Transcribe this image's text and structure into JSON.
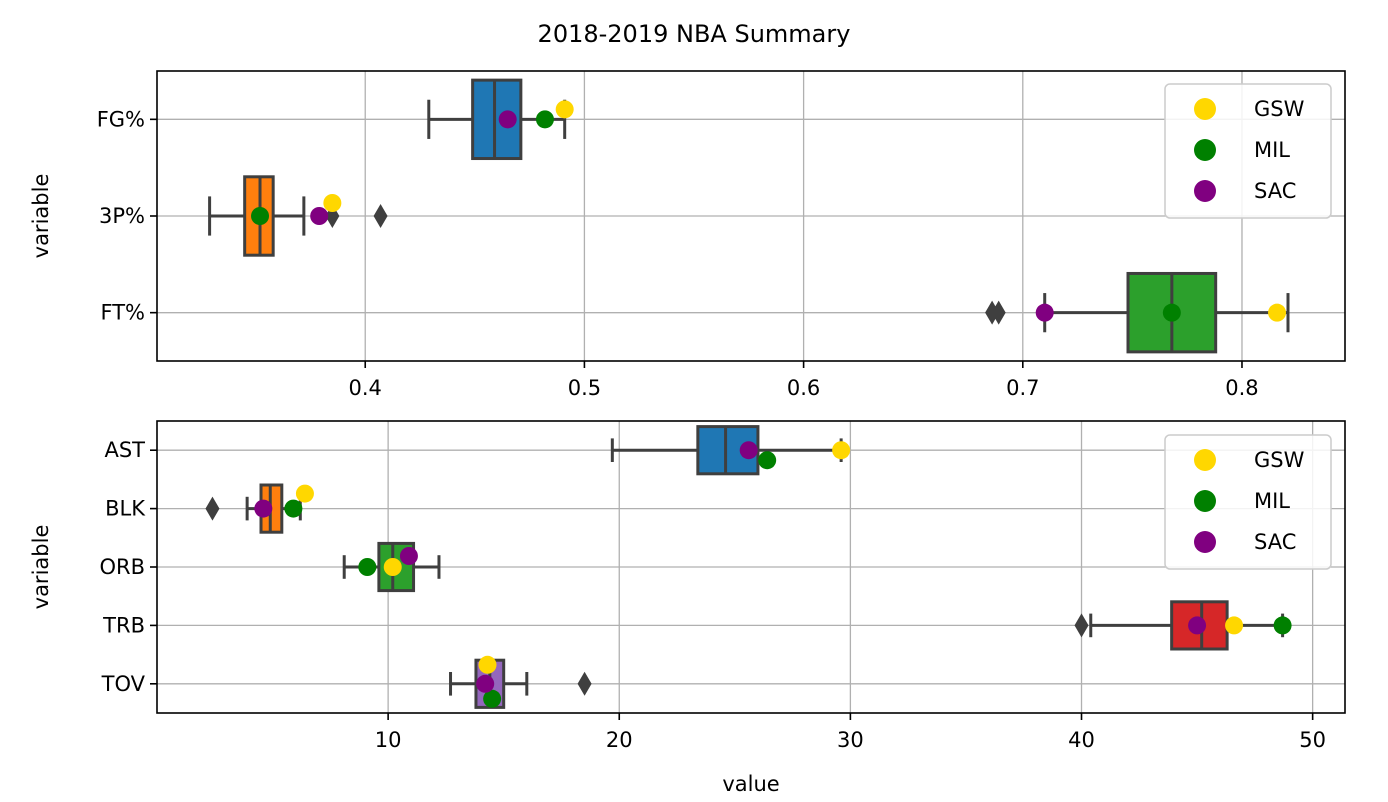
{
  "title": "2018-2019 NBA Summary",
  "colors": {
    "gridline": "#b0b0b0",
    "box_edge": "#3f3f3f",
    "GSW": "#ffd700",
    "MIL": "#008000",
    "SAC": "#800080"
  },
  "chart_data": [
    {
      "type": "box",
      "title": "2018-2019 NBA Summary",
      "xlabel": "",
      "ylabel": "variable",
      "xlim": [
        0.305,
        0.847
      ],
      "xticks": [
        0.4,
        0.5,
        0.6,
        0.7,
        0.8
      ],
      "xtick_labels": [
        "0.4",
        "0.5",
        "0.6",
        "0.7",
        "0.8"
      ],
      "grid": true,
      "legend_position": "top-right",
      "categories": [
        "FG%",
        "3P%",
        "FT%"
      ],
      "boxes": [
        {
          "category": "FG%",
          "color": "#1f77b4",
          "whisker_low": 0.429,
          "q1": 0.449,
          "median": 0.459,
          "q3": 0.471,
          "whisker_high": 0.491,
          "outliers": []
        },
        {
          "category": "3P%",
          "color": "#ff7f0e",
          "whisker_low": 0.329,
          "q1": 0.345,
          "median": 0.352,
          "q3": 0.358,
          "whisker_high": 0.372,
          "outliers": [
            0.385,
            0.407
          ]
        },
        {
          "category": "FT%",
          "color": "#2ca02c",
          "whisker_low": 0.71,
          "q1": 0.748,
          "median": 0.768,
          "q3": 0.788,
          "whisker_high": 0.821,
          "outliers": [
            0.686,
            0.689
          ]
        }
      ],
      "series": [
        {
          "name": "GSW",
          "values": [
            0.491,
            0.385,
            0.816
          ]
        },
        {
          "name": "MIL",
          "values": [
            0.482,
            0.352,
            0.768
          ]
        },
        {
          "name": "SAC",
          "values": [
            0.465,
            0.379,
            0.71
          ]
        }
      ]
    },
    {
      "type": "box",
      "title": "",
      "xlabel": "value",
      "ylabel": "variable",
      "xlim": [
        0.0,
        51.4
      ],
      "xticks": [
        10,
        20,
        30,
        40,
        50
      ],
      "xtick_labels": [
        "10",
        "20",
        "30",
        "40",
        "50"
      ],
      "grid": true,
      "legend_position": "top-right",
      "categories": [
        "AST",
        "BLK",
        "ORB",
        "TRB",
        "TOV"
      ],
      "boxes": [
        {
          "category": "AST",
          "color": "#1f77b4",
          "whisker_low": 19.7,
          "q1": 23.4,
          "median": 24.6,
          "q3": 26.0,
          "whisker_high": 29.6,
          "outliers": []
        },
        {
          "category": "BLK",
          "color": "#ff7f0e",
          "whisker_low": 3.9,
          "q1": 4.5,
          "median": 4.9,
          "q3": 5.4,
          "whisker_high": 6.2,
          "outliers": [
            2.4
          ]
        },
        {
          "category": "ORB",
          "color": "#2ca02c",
          "whisker_low": 8.1,
          "q1": 9.6,
          "median": 10.2,
          "q3": 11.1,
          "whisker_high": 12.2,
          "outliers": []
        },
        {
          "category": "TRB",
          "color": "#d62728",
          "whisker_low": 40.4,
          "q1": 43.9,
          "median": 45.2,
          "q3": 46.3,
          "whisker_high": 48.7,
          "outliers": [
            40.0
          ]
        },
        {
          "category": "TOV",
          "color": "#9467bd",
          "whisker_low": 12.7,
          "q1": 13.8,
          "median": 14.4,
          "q3": 15.0,
          "whisker_high": 16.0,
          "outliers": [
            18.5
          ]
        }
      ],
      "series": [
        {
          "name": "GSW",
          "values": [
            29.6,
            6.4,
            10.2,
            46.6,
            14.3
          ]
        },
        {
          "name": "MIL",
          "values": [
            26.4,
            5.9,
            9.1,
            48.7,
            14.5
          ]
        },
        {
          "name": "SAC",
          "values": [
            25.6,
            4.6,
            10.9,
            45.0,
            14.2
          ]
        }
      ]
    }
  ]
}
